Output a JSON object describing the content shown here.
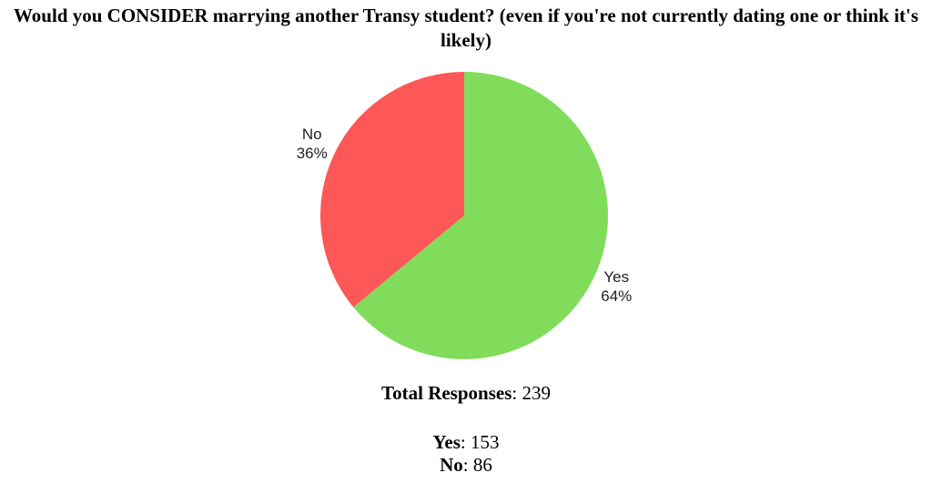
{
  "chart_data": {
    "type": "pie",
    "title": "Would you CONSIDER marrying another Transy student? (even if you're not currently dating one or think it's likely)",
    "categories": [
      "Yes",
      "No"
    ],
    "values": [
      64,
      36
    ],
    "value_labels": [
      "64%",
      "36%"
    ],
    "colors": [
      "#80dc5a",
      "#fe5757"
    ]
  },
  "summary": [
    {
      "label": "Total Responses",
      "value": 239
    },
    {
      "label": "Yes",
      "value": 153
    },
    {
      "label": "No",
      "value": 86
    }
  ]
}
